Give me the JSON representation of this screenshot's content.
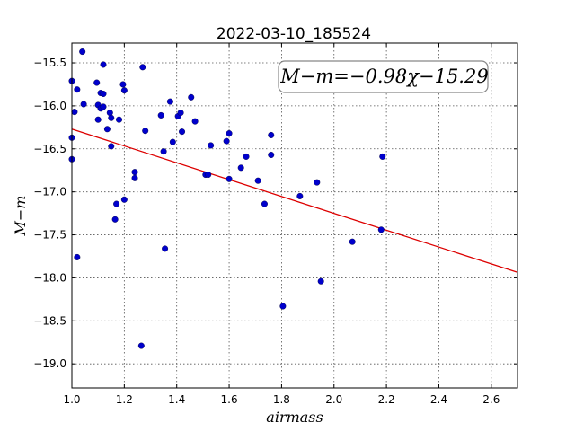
{
  "chart_data": {
    "type": "scatter",
    "title": "2022-03-10_185524",
    "xlabel": "airmass",
    "ylabel": "M−m",
    "xlim": [
      1.0,
      2.7
    ],
    "ylim": [
      -19.28,
      -15.27
    ],
    "xticks": [
      "1.0",
      "1.2",
      "1.4",
      "1.6",
      "1.8",
      "2.0",
      "2.2",
      "2.4",
      "2.6"
    ],
    "yticks": [
      "−15.5",
      "−16.0",
      "−16.5",
      "−17.0",
      "−17.5",
      "−18.0",
      "−18.5",
      "−19.0"
    ],
    "grid": true,
    "annotation": "M−m=−0.98χ−15.29",
    "annotation_position": "top-right",
    "point_color": "#0000cc",
    "fit_color": "#dd0000",
    "fit": {
      "slope": -0.98,
      "intercept": -15.29
    },
    "points": [
      [
        1.0,
        -15.71
      ],
      [
        1.0,
        -16.37
      ],
      [
        1.0,
        -16.62
      ],
      [
        1.01,
        -16.07
      ],
      [
        1.02,
        -15.81
      ],
      [
        1.02,
        -17.76
      ],
      [
        1.04,
        -15.37
      ],
      [
        1.045,
        -15.98
      ],
      [
        1.095,
        -15.73
      ],
      [
        1.1,
        -15.99
      ],
      [
        1.1,
        -16.16
      ],
      [
        1.11,
        -16.03
      ],
      [
        1.11,
        -15.85
      ],
      [
        1.12,
        -15.86
      ],
      [
        1.12,
        -16.01
      ],
      [
        1.12,
        -15.52
      ],
      [
        1.135,
        -16.27
      ],
      [
        1.145,
        -16.08
      ],
      [
        1.15,
        -16.14
      ],
      [
        1.15,
        -16.47
      ],
      [
        1.165,
        -17.32
      ],
      [
        1.17,
        -17.14
      ],
      [
        1.18,
        -16.16
      ],
      [
        1.195,
        -15.75
      ],
      [
        1.2,
        -15.82
      ],
      [
        1.2,
        -17.09
      ],
      [
        1.24,
        -16.77
      ],
      [
        1.24,
        -16.84
      ],
      [
        1.265,
        -18.79
      ],
      [
        1.27,
        -15.55
      ],
      [
        1.28,
        -16.29
      ],
      [
        1.34,
        -16.11
      ],
      [
        1.35,
        -16.53
      ],
      [
        1.355,
        -17.66
      ],
      [
        1.375,
        -15.95
      ],
      [
        1.385,
        -16.42
      ],
      [
        1.405,
        -16.12
      ],
      [
        1.415,
        -16.08
      ],
      [
        1.42,
        -16.3
      ],
      [
        1.455,
        -15.9
      ],
      [
        1.47,
        -16.18
      ],
      [
        1.51,
        -16.8
      ],
      [
        1.52,
        -16.8
      ],
      [
        1.53,
        -16.46
      ],
      [
        1.59,
        -16.41
      ],
      [
        1.6,
        -16.32
      ],
      [
        1.6,
        -16.85
      ],
      [
        1.645,
        -16.72
      ],
      [
        1.665,
        -16.59
      ],
      [
        1.71,
        -16.87
      ],
      [
        1.735,
        -17.14
      ],
      [
        1.76,
        -16.34
      ],
      [
        1.76,
        -16.57
      ],
      [
        1.805,
        -18.33
      ],
      [
        1.87,
        -17.05
      ],
      [
        1.935,
        -16.89
      ],
      [
        1.95,
        -18.04
      ],
      [
        2.07,
        -17.58
      ],
      [
        2.18,
        -17.44
      ],
      [
        2.185,
        -16.59
      ]
    ]
  }
}
